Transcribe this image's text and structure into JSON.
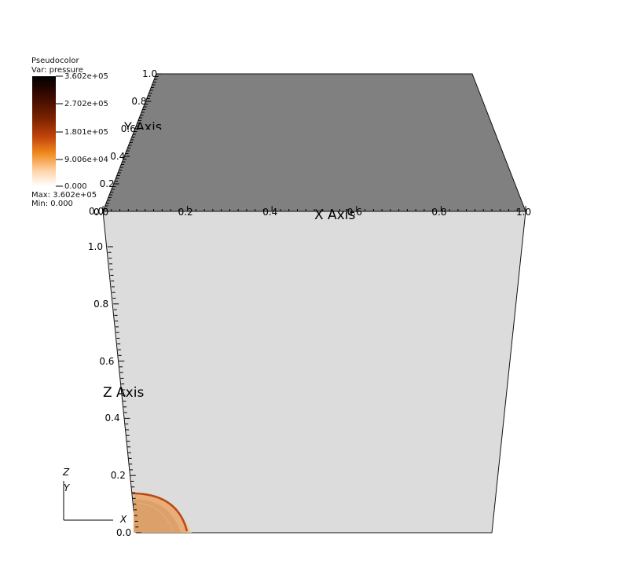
{
  "legend": {
    "title": "Pseudocolor",
    "var": "Var: pressure",
    "ticks": [
      "3.602e+05",
      "2.702e+05",
      "1.801e+05",
      "9.006e+04",
      "0.000"
    ],
    "max": "Max: 3.602e+05",
    "min": "Min: 0.000",
    "colormap": [
      "#000000",
      "#3a0a00",
      "#7a2200",
      "#c0440b",
      "#f08a1e",
      "#ffd3a8",
      "#ffffff"
    ]
  },
  "axes": {
    "x_title": "X Axis",
    "y_title": "Y Axis",
    "z_title": "Z Axis",
    "x_ticks": [
      "0.0",
      "0.2",
      "0.4",
      "0.6",
      "0.8",
      "1.0"
    ],
    "y_ticks": [
      "0.0",
      "0.2",
      "0.4",
      "0.6",
      "0.8",
      "1.0"
    ],
    "z_ticks": [
      "0.0",
      "0.2",
      "0.4",
      "0.6",
      "0.8",
      "1.0"
    ]
  },
  "triad": {
    "z_label": "Z",
    "y_label": "Y",
    "x_label": "X"
  },
  "colors": {
    "top_face": "#808080",
    "front_face": "#dcdcdc",
    "pressure_light": "#e9b184",
    "pressure_mid": "#dc9a5e",
    "pressure_front": "#b84a10"
  }
}
